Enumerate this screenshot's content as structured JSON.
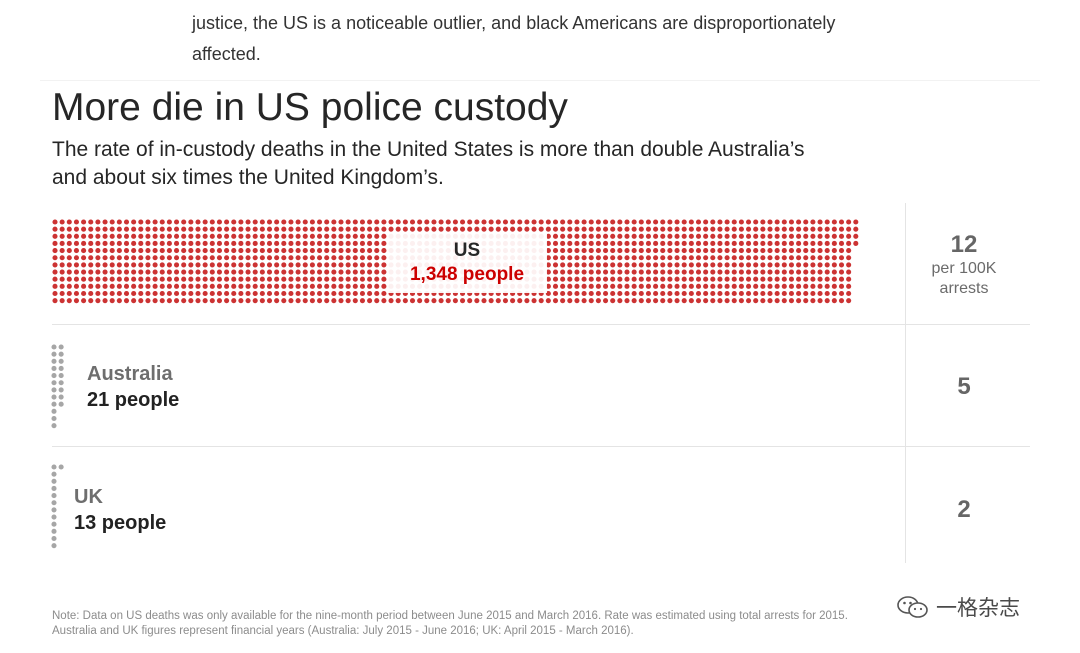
{
  "intro": {
    "line1": "justice, the US is a noticeable outlier, and black Americans are disproportionately",
    "line2": "affected."
  },
  "header": {
    "title": "More die in US police custody",
    "subtitle_line1": "The rate of in-custody deaths in the United States is more than double Australia’s",
    "subtitle_line2": "and about six times the United Kingdom’s."
  },
  "chart_data": {
    "type": "unit",
    "title": "More die in US police custody",
    "unit_description": "one dot per in-custody death",
    "categories": [
      "US",
      "Australia",
      "UK"
    ],
    "series": [
      {
        "name": "Deaths in custody",
        "values": [
          1348,
          21,
          13
        ],
        "labels": [
          "1,348 people",
          "21 people",
          "13 people"
        ]
      },
      {
        "name": "Deaths per 100K arrests",
        "values": [
          12,
          5,
          2
        ]
      }
    ],
    "rate_unit_line1": "per 100K",
    "rate_unit_line2": "arrests",
    "colors": {
      "us": "#cc3333",
      "other": "#a6a6a6"
    }
  },
  "note": {
    "line1": "Note: Data on US deaths was only available for the nine-month period between June 2015 and March 2016. Rate was estimated using total arrests for 2015.",
    "line2": "Australia and UK figures represent financial years (Australia: July 2015 - June 2016; UK: April 2015 - March 2016)."
  },
  "watermark": {
    "text": "一格杂志",
    "icon": "wechat-icon"
  }
}
